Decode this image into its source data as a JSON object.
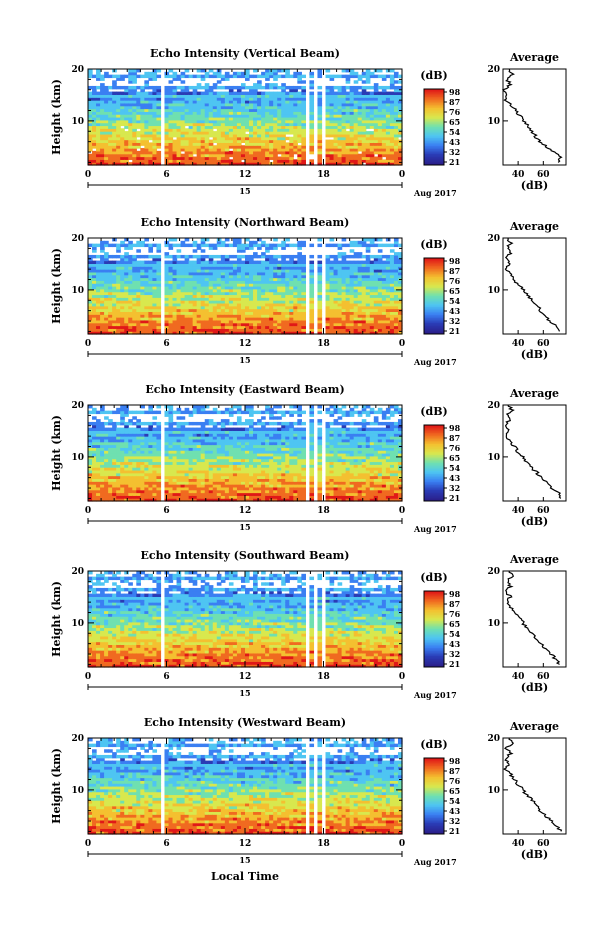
{
  "figure": {
    "xlabel": "Local Time",
    "date_label": "Aug 2017",
    "day_label": "15",
    "ylabel": "Height (km)",
    "colorbar_unit": "(dB)",
    "average_title": "Average",
    "average_xlabel": "(dB)",
    "colorbar_ticks": [
      "98",
      "87",
      "76",
      "65",
      "54",
      "43",
      "32",
      "21"
    ],
    "colors": [
      "#2a3bb5",
      "#3a7ff2",
      "#4ec5f2",
      "#6fe0b0",
      "#d8e84e",
      "#f4c030",
      "#f06a20",
      "#e01818"
    ]
  },
  "chart_data": [
    {
      "type": "heatmap",
      "title": "Echo Intensity (Vertical Beam)",
      "x_ticks": [
        "0",
        "6",
        "12",
        "18",
        "0"
      ],
      "y_ticks": [
        "20",
        "10"
      ],
      "xlim": [
        0,
        24
      ],
      "ylim": [
        1.5,
        20
      ],
      "avg_ticks": [
        "40",
        "60"
      ],
      "avg_xlim": [
        28,
        78
      ],
      "average_profile": {
        "height_km": [
          2,
          3,
          4,
          5,
          6,
          7,
          8,
          9,
          10,
          11,
          12,
          13,
          14,
          15,
          16,
          17,
          18,
          19,
          20
        ],
        "db": [
          72,
          74,
          68,
          63,
          57,
          54,
          51,
          48,
          45,
          41,
          38,
          35,
          30,
          32,
          29,
          34,
          31,
          35,
          33
        ]
      }
    },
    {
      "type": "heatmap",
      "title": "Echo Intensity (Northward Beam)",
      "x_ticks": [
        "0",
        "6",
        "12",
        "18",
        "0"
      ],
      "y_ticks": [
        "20",
        "10"
      ],
      "xlim": [
        0,
        24
      ],
      "ylim": [
        1.5,
        20
      ],
      "avg_ticks": [
        "40",
        "60"
      ],
      "avg_xlim": [
        28,
        78
      ],
      "average_profile": {
        "height_km": [
          2,
          3,
          4,
          5,
          6,
          7,
          8,
          9,
          10,
          11,
          12,
          13,
          14,
          15,
          16,
          17,
          18,
          19,
          20
        ],
        "db": [
          73,
          71,
          65,
          62,
          58,
          55,
          51,
          47,
          44,
          40,
          37,
          34,
          30,
          33,
          30,
          34,
          31,
          34,
          32
        ]
      }
    },
    {
      "type": "heatmap",
      "title": "Echo Intensity (Eastward Beam)",
      "x_ticks": [
        "0",
        "6",
        "12",
        "18",
        "0"
      ],
      "y_ticks": [
        "20",
        "10"
      ],
      "xlim": [
        0,
        24
      ],
      "ylim": [
        1.5,
        20
      ],
      "avg_ticks": [
        "40",
        "60"
      ],
      "avg_xlim": [
        28,
        78
      ],
      "average_profile": {
        "height_km": [
          2,
          3,
          4,
          5,
          6,
          7,
          8,
          9,
          10,
          11,
          12,
          13,
          14,
          15,
          16,
          17,
          18,
          19,
          20
        ],
        "db": [
          74,
          72,
          66,
          63,
          58,
          55,
          50,
          47,
          44,
          40,
          37,
          34,
          30,
          33,
          29,
          33,
          31,
          35,
          32
        ]
      }
    },
    {
      "type": "heatmap",
      "title": "Echo Intensity (Southward Beam)",
      "x_ticks": [
        "0",
        "6",
        "12",
        "18",
        "0"
      ],
      "y_ticks": [
        "20",
        "10"
      ],
      "xlim": [
        0,
        24
      ],
      "ylim": [
        1.5,
        20
      ],
      "avg_ticks": [
        "40",
        "60"
      ],
      "avg_xlim": [
        28,
        78
      ],
      "average_profile": {
        "height_km": [
          2,
          3,
          4,
          5,
          6,
          7,
          8,
          9,
          10,
          11,
          12,
          13,
          14,
          15,
          16,
          17,
          18,
          19,
          20
        ],
        "db": [
          73,
          70,
          66,
          61,
          58,
          54,
          51,
          47,
          44,
          41,
          37,
          34,
          31,
          34,
          30,
          34,
          31,
          35,
          33
        ]
      }
    },
    {
      "type": "heatmap",
      "title": "Echo Intensity (Westward Beam)",
      "x_ticks": [
        "0",
        "6",
        "12",
        "18",
        "0"
      ],
      "y_ticks": [
        "20",
        "10"
      ],
      "xlim": [
        0,
        24
      ],
      "ylim": [
        1.5,
        20
      ],
      "avg_ticks": [
        "40",
        "60"
      ],
      "avg_xlim": [
        28,
        78
      ],
      "average_profile": {
        "height_km": [
          2,
          3,
          4,
          5,
          6,
          7,
          8,
          9,
          10,
          11,
          12,
          13,
          14,
          15,
          16,
          17,
          18,
          19,
          20
        ],
        "db": [
          74,
          71,
          66,
          62,
          57,
          54,
          51,
          47,
          44,
          40,
          37,
          34,
          30,
          33,
          30,
          34,
          31,
          35,
          33
        ]
      }
    }
  ]
}
